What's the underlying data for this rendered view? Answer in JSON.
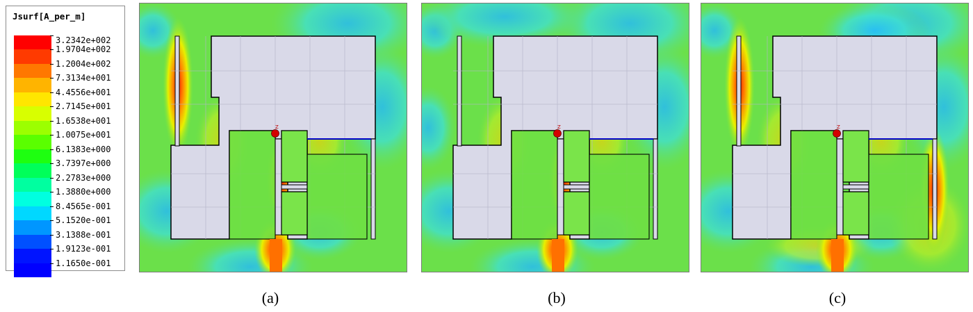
{
  "legend": {
    "title": "Jsurf[A_per_m]",
    "entries": [
      {
        "label": "3.2342e+002",
        "color": "#ff0000"
      },
      {
        "label": "1.9704e+002",
        "color": "#ff3a00"
      },
      {
        "label": "1.2004e+002",
        "color": "#ff7800"
      },
      {
        "label": "7.3134e+001",
        "color": "#ffb400"
      },
      {
        "label": "4.4556e+001",
        "color": "#ffe600"
      },
      {
        "label": "2.7145e+001",
        "color": "#d8ff00"
      },
      {
        "label": "1.6538e+001",
        "color": "#9cff00"
      },
      {
        "label": "1.0075e+001",
        "color": "#5aff00"
      },
      {
        "label": "6.1383e+000",
        "color": "#1eff10"
      },
      {
        "label": "3.7397e+000",
        "color": "#00ff5a"
      },
      {
        "label": "2.2783e+000",
        "color": "#00ffa0"
      },
      {
        "label": "1.3880e+000",
        "color": "#00ffe0"
      },
      {
        "label": "8.4565e-001",
        "color": "#00d8ff"
      },
      {
        "label": "5.1520e-001",
        "color": "#0096ff"
      },
      {
        "label": "3.1388e-001",
        "color": "#0050ff"
      },
      {
        "label": "1.9123e-001",
        "color": "#0014ff"
      },
      {
        "label": "1.1650e-001",
        "color": "#0000ff"
      }
    ]
  },
  "panels": [
    {
      "caption": "(a)",
      "hotspots": [
        "left-slot",
        "feed-line",
        "center-slot"
      ]
    },
    {
      "caption": "(b)",
      "hotspots": [
        "feed-line",
        "center-slot"
      ]
    },
    {
      "caption": "(c)",
      "hotspots": [
        "left-slot",
        "feed-line",
        "right-slot"
      ]
    }
  ],
  "colors": {
    "background_field": "#6be04a",
    "patch": "#d9d9e8",
    "outline": "#000000",
    "feed_marker": "#d40000",
    "microstrip": "#0000c8"
  },
  "marker_label": "Z"
}
